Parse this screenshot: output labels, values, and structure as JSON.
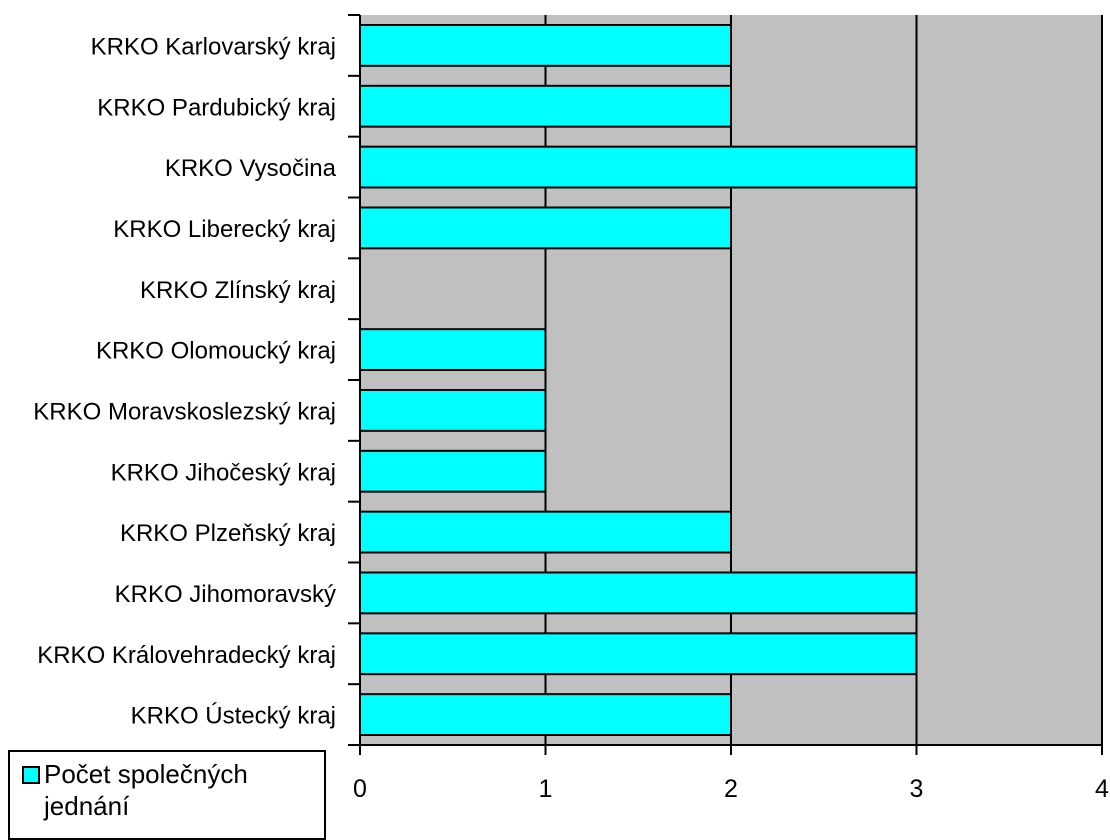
{
  "chart_data": {
    "type": "bar",
    "orientation": "horizontal",
    "categories": [
      "KRKO Karlovarský kraj",
      "KRKO Pardubický kraj",
      "KRKO Vysočina",
      "KRKO Liberecký kraj",
      "KRKO Zlínský kraj",
      "KRKO Olomoucký kraj",
      "KRKO Moravskoslezský kraj",
      "KRKO Jihočeský kraj",
      "KRKO Plzeňský kraj",
      "KRKO Jihomoravský",
      "KRKO Královehradecký kraj",
      "KRKO Ústecký kraj"
    ],
    "series": [
      {
        "name": "Počet společných jednání",
        "values": [
          2,
          2,
          3,
          2,
          0,
          1,
          1,
          1,
          2,
          3,
          3,
          2
        ]
      }
    ],
    "xlim": [
      0,
      4
    ],
    "xticks": [
      "0",
      "1",
      "2",
      "3",
      "4"
    ],
    "grid": true,
    "legend_position": "bottom-left",
    "colors": {
      "bar": "#00ffff",
      "plot_background": "#c0c0c0",
      "axis": "#000000"
    }
  },
  "legend": {
    "label": "Počet společných jednání"
  }
}
